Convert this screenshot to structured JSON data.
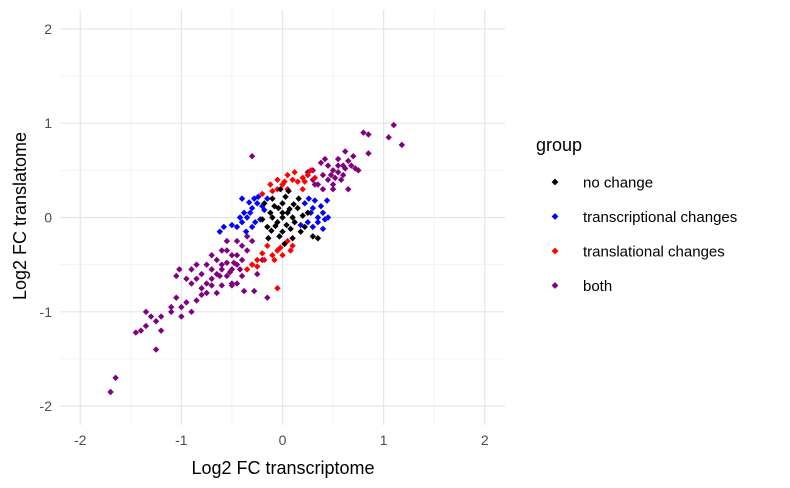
{
  "chart_data": {
    "type": "scatter",
    "title": "",
    "xlabel": "Log2 FC transcriptome",
    "ylabel": "Log2 FC translatome",
    "xlim": [
      -2.2,
      2.2
    ],
    "ylim": [
      -2.2,
      2.2
    ],
    "x_ticks": [
      -2,
      -1,
      0,
      1,
      2
    ],
    "y_ticks": [
      -2,
      -1,
      0,
      1,
      2
    ],
    "x_tick_labels": [
      "-2",
      "-1",
      "0",
      "1",
      "2"
    ],
    "y_tick_labels": [
      "-2",
      "-1",
      "0",
      "1",
      "2"
    ],
    "grid": true,
    "legend": {
      "title": "group",
      "position": "right",
      "entries": [
        {
          "label": "no change",
          "color": "#000000"
        },
        {
          "label": "transcriptional changes",
          "color": "#0000FF"
        },
        {
          "label": "translational changes",
          "color": "#FF0000"
        },
        {
          "label": "both",
          "color": "#800080"
        }
      ]
    },
    "series": [
      {
        "name": "no change",
        "color": "#000000",
        "points": [
          [
            0.0,
            0.0
          ],
          [
            0.05,
            0.05
          ],
          [
            -0.05,
            -0.05
          ],
          [
            0.1,
            0.0
          ],
          [
            -0.1,
            0.0
          ],
          [
            0.0,
            0.15
          ],
          [
            0.0,
            -0.15
          ],
          [
            0.08,
            -0.12
          ],
          [
            -0.08,
            0.12
          ],
          [
            0.15,
            0.1
          ],
          [
            -0.15,
            -0.1
          ],
          [
            0.12,
            -0.05
          ],
          [
            -0.12,
            0.05
          ],
          [
            0.03,
            0.22
          ],
          [
            -0.03,
            -0.2
          ],
          [
            0.2,
            0.02
          ],
          [
            -0.2,
            -0.02
          ],
          [
            0.06,
            0.28
          ],
          [
            0.1,
            -0.22
          ],
          [
            -0.1,
            0.2
          ],
          [
            0.18,
            -0.15
          ],
          [
            -0.18,
            0.15
          ],
          [
            0.25,
            0.05
          ],
          [
            -0.04,
            0.1
          ],
          [
            0.04,
            -0.08
          ],
          [
            0.22,
            -0.1
          ],
          [
            0.3,
            -0.2
          ],
          [
            0.35,
            -0.22
          ],
          [
            0.16,
            0.2
          ],
          [
            -0.14,
            -0.22
          ],
          [
            0.02,
            -0.28
          ],
          [
            -0.02,
            0.3
          ],
          [
            0.0,
            0.05
          ],
          [
            0.07,
            0.09
          ],
          [
            -0.07,
            -0.09
          ],
          [
            0.11,
            0.14
          ],
          [
            -0.11,
            -0.14
          ]
        ]
      },
      {
        "name": "transcriptional changes",
        "color": "#0000FF",
        "points": [
          [
            -0.3,
            0.1
          ],
          [
            -0.35,
            0.0
          ],
          [
            -0.4,
            -0.05
          ],
          [
            -0.25,
            0.15
          ],
          [
            -0.3,
            -0.1
          ],
          [
            -0.45,
            -0.1
          ],
          [
            -0.38,
            0.05
          ],
          [
            0.3,
            0.1
          ],
          [
            0.35,
            0.0
          ],
          [
            0.4,
            0.05
          ],
          [
            0.25,
            -0.05
          ],
          [
            0.3,
            -0.1
          ],
          [
            0.38,
            0.12
          ],
          [
            0.42,
            -0.02
          ],
          [
            -0.2,
            0.12
          ],
          [
            -0.22,
            -0.02
          ],
          [
            -0.28,
            0.2
          ],
          [
            0.22,
            0.15
          ],
          [
            0.28,
            0.05
          ],
          [
            0.35,
            -0.05
          ],
          [
            -0.15,
            0.2
          ],
          [
            -0.32,
            0.05
          ],
          [
            0.4,
            -0.12
          ],
          [
            -0.42,
            0.0
          ],
          [
            -0.5,
            -0.08
          ],
          [
            0.45,
            0.0
          ],
          [
            -0.27,
            -0.05
          ],
          [
            0.32,
            0.18
          ],
          [
            -0.36,
            -0.15
          ],
          [
            0.18,
            -0.08
          ],
          [
            -0.18,
            0.08
          ],
          [
            -0.24,
            0.22
          ],
          [
            0.26,
            0.2
          ],
          [
            -0.62,
            -0.15
          ],
          [
            -0.58,
            -0.1
          ],
          [
            -0.4,
            0.2
          ],
          [
            0.44,
            0.18
          ],
          [
            -0.33,
            0.16
          ]
        ]
      },
      {
        "name": "translational changes",
        "color": "#FF0000",
        "points": [
          [
            0.1,
            0.4
          ],
          [
            0.0,
            0.35
          ],
          [
            0.05,
            0.45
          ],
          [
            -0.05,
            0.3
          ],
          [
            0.15,
            0.38
          ],
          [
            -0.1,
            0.28
          ],
          [
            -0.2,
            0.25
          ],
          [
            0.1,
            -0.3
          ],
          [
            -0.05,
            -0.35
          ],
          [
            -0.1,
            -0.4
          ],
          [
            0.05,
            -0.25
          ],
          [
            -0.15,
            -0.3
          ],
          [
            -0.25,
            -0.45
          ],
          [
            0.0,
            -0.4
          ],
          [
            -0.2,
            -0.38
          ],
          [
            0.2,
            0.42
          ],
          [
            0.2,
            0.3
          ],
          [
            -0.3,
            -0.5
          ],
          [
            -0.05,
            0.4
          ],
          [
            0.12,
            0.48
          ],
          [
            0.08,
            -0.35
          ],
          [
            -0.25,
            -0.52
          ],
          [
            0.25,
            0.45
          ],
          [
            -0.08,
            -0.45
          ],
          [
            0.22,
            0.38
          ],
          [
            -0.18,
            -0.45
          ],
          [
            -0.35,
            -0.55
          ],
          [
            -0.05,
            -0.75
          ],
          [
            0.28,
            0.5
          ],
          [
            0.05,
            0.3
          ],
          [
            -0.12,
            0.35
          ],
          [
            0.32,
            0.42
          ],
          [
            0.02,
            0.38
          ],
          [
            -0.02,
            -0.32
          ]
        ]
      },
      {
        "name": "both",
        "color": "#800080",
        "points": [
          [
            0.3,
            0.4
          ],
          [
            0.4,
            0.45
          ],
          [
            0.5,
            0.5
          ],
          [
            0.35,
            0.35
          ],
          [
            0.45,
            0.55
          ],
          [
            0.55,
            0.48
          ],
          [
            0.6,
            0.55
          ],
          [
            0.65,
            0.6
          ],
          [
            0.4,
            0.3
          ],
          [
            0.5,
            0.35
          ],
          [
            0.7,
            0.65
          ],
          [
            0.6,
            0.45
          ],
          [
            0.3,
            0.5
          ],
          [
            0.55,
            0.62
          ],
          [
            0.45,
            0.4
          ],
          [
            0.5,
            0.3
          ],
          [
            0.55,
            0.55
          ],
          [
            0.58,
            0.4
          ],
          [
            0.62,
            0.7
          ],
          [
            0.75,
            0.5
          ],
          [
            0.8,
            0.9
          ],
          [
            0.85,
            0.88
          ],
          [
            1.1,
            0.98
          ],
          [
            1.05,
            0.85
          ],
          [
            1.18,
            0.77
          ],
          [
            0.85,
            0.68
          ],
          [
            0.72,
            0.52
          ],
          [
            -0.3,
            0.65
          ],
          [
            0.65,
            0.3
          ],
          [
            -0.3,
            -0.25
          ],
          [
            -0.4,
            -0.3
          ],
          [
            -0.5,
            -0.4
          ],
          [
            -0.35,
            -0.35
          ],
          [
            -0.45,
            -0.5
          ],
          [
            -0.55,
            -0.48
          ],
          [
            -0.6,
            -0.55
          ],
          [
            -0.65,
            -0.6
          ],
          [
            -0.4,
            -0.45
          ],
          [
            -0.5,
            -0.55
          ],
          [
            -0.7,
            -0.65
          ],
          [
            -0.6,
            -0.5
          ],
          [
            -0.3,
            -0.5
          ],
          [
            -0.55,
            -0.62
          ],
          [
            -0.45,
            -0.4
          ],
          [
            -0.75,
            -0.7
          ],
          [
            -0.8,
            -0.75
          ],
          [
            -0.8,
            -0.6
          ],
          [
            -0.85,
            -0.65
          ],
          [
            -0.9,
            -0.7
          ],
          [
            -0.7,
            -0.55
          ],
          [
            -0.65,
            -0.45
          ],
          [
            -0.55,
            -0.35
          ],
          [
            -0.45,
            -0.25
          ],
          [
            -0.35,
            -0.2
          ],
          [
            -0.4,
            -0.62
          ],
          [
            -0.5,
            -0.7
          ],
          [
            -0.6,
            -0.72
          ],
          [
            -0.2,
            -0.45
          ],
          [
            -0.25,
            -0.6
          ],
          [
            -0.75,
            -0.8
          ],
          [
            -0.85,
            -0.88
          ],
          [
            -0.95,
            -0.9
          ],
          [
            -1.0,
            -0.95
          ],
          [
            -1.05,
            -0.85
          ],
          [
            -1.1,
            -1.0
          ],
          [
            -1.2,
            -1.05
          ],
          [
            -1.25,
            -1.1
          ],
          [
            -1.3,
            -1.05
          ],
          [
            -1.35,
            -1.15
          ],
          [
            -1.4,
            -1.2
          ],
          [
            -1.45,
            -1.22
          ],
          [
            -1.2,
            -1.2
          ],
          [
            -1.0,
            -1.05
          ],
          [
            -0.9,
            -1.0
          ],
          [
            -1.25,
            -1.4
          ],
          [
            -1.05,
            -0.62
          ],
          [
            -1.02,
            -0.55
          ],
          [
            -0.9,
            -0.55
          ],
          [
            -0.85,
            -0.5
          ],
          [
            -0.95,
            -0.65
          ],
          [
            -0.75,
            -0.5
          ],
          [
            -0.6,
            -0.35
          ],
          [
            -0.55,
            -0.25
          ],
          [
            -0.7,
            -0.4
          ],
          [
            -0.65,
            -0.8
          ],
          [
            -0.45,
            -0.7
          ],
          [
            -0.38,
            -0.78
          ],
          [
            -0.28,
            -0.78
          ],
          [
            -0.15,
            -0.85
          ],
          [
            -1.35,
            -1.0
          ],
          [
            -1.1,
            -0.95
          ],
          [
            -1.65,
            -1.7
          ],
          [
            -1.7,
            -1.85
          ],
          [
            -0.5,
            -0.72
          ],
          [
            -0.7,
            -0.72
          ],
          [
            -0.8,
            -0.82
          ],
          [
            -0.62,
            -0.62
          ],
          [
            -0.52,
            -0.58
          ],
          [
            -0.42,
            -0.55
          ],
          [
            -0.48,
            -0.48
          ],
          [
            0.38,
            0.58
          ],
          [
            0.42,
            0.62
          ],
          [
            0.48,
            0.45
          ],
          [
            0.52,
            0.42
          ],
          [
            0.62,
            0.52
          ],
          [
            0.32,
            0.35
          ],
          [
            0.68,
            0.55
          ],
          [
            0.25,
            0.48
          ]
        ]
      }
    ]
  }
}
